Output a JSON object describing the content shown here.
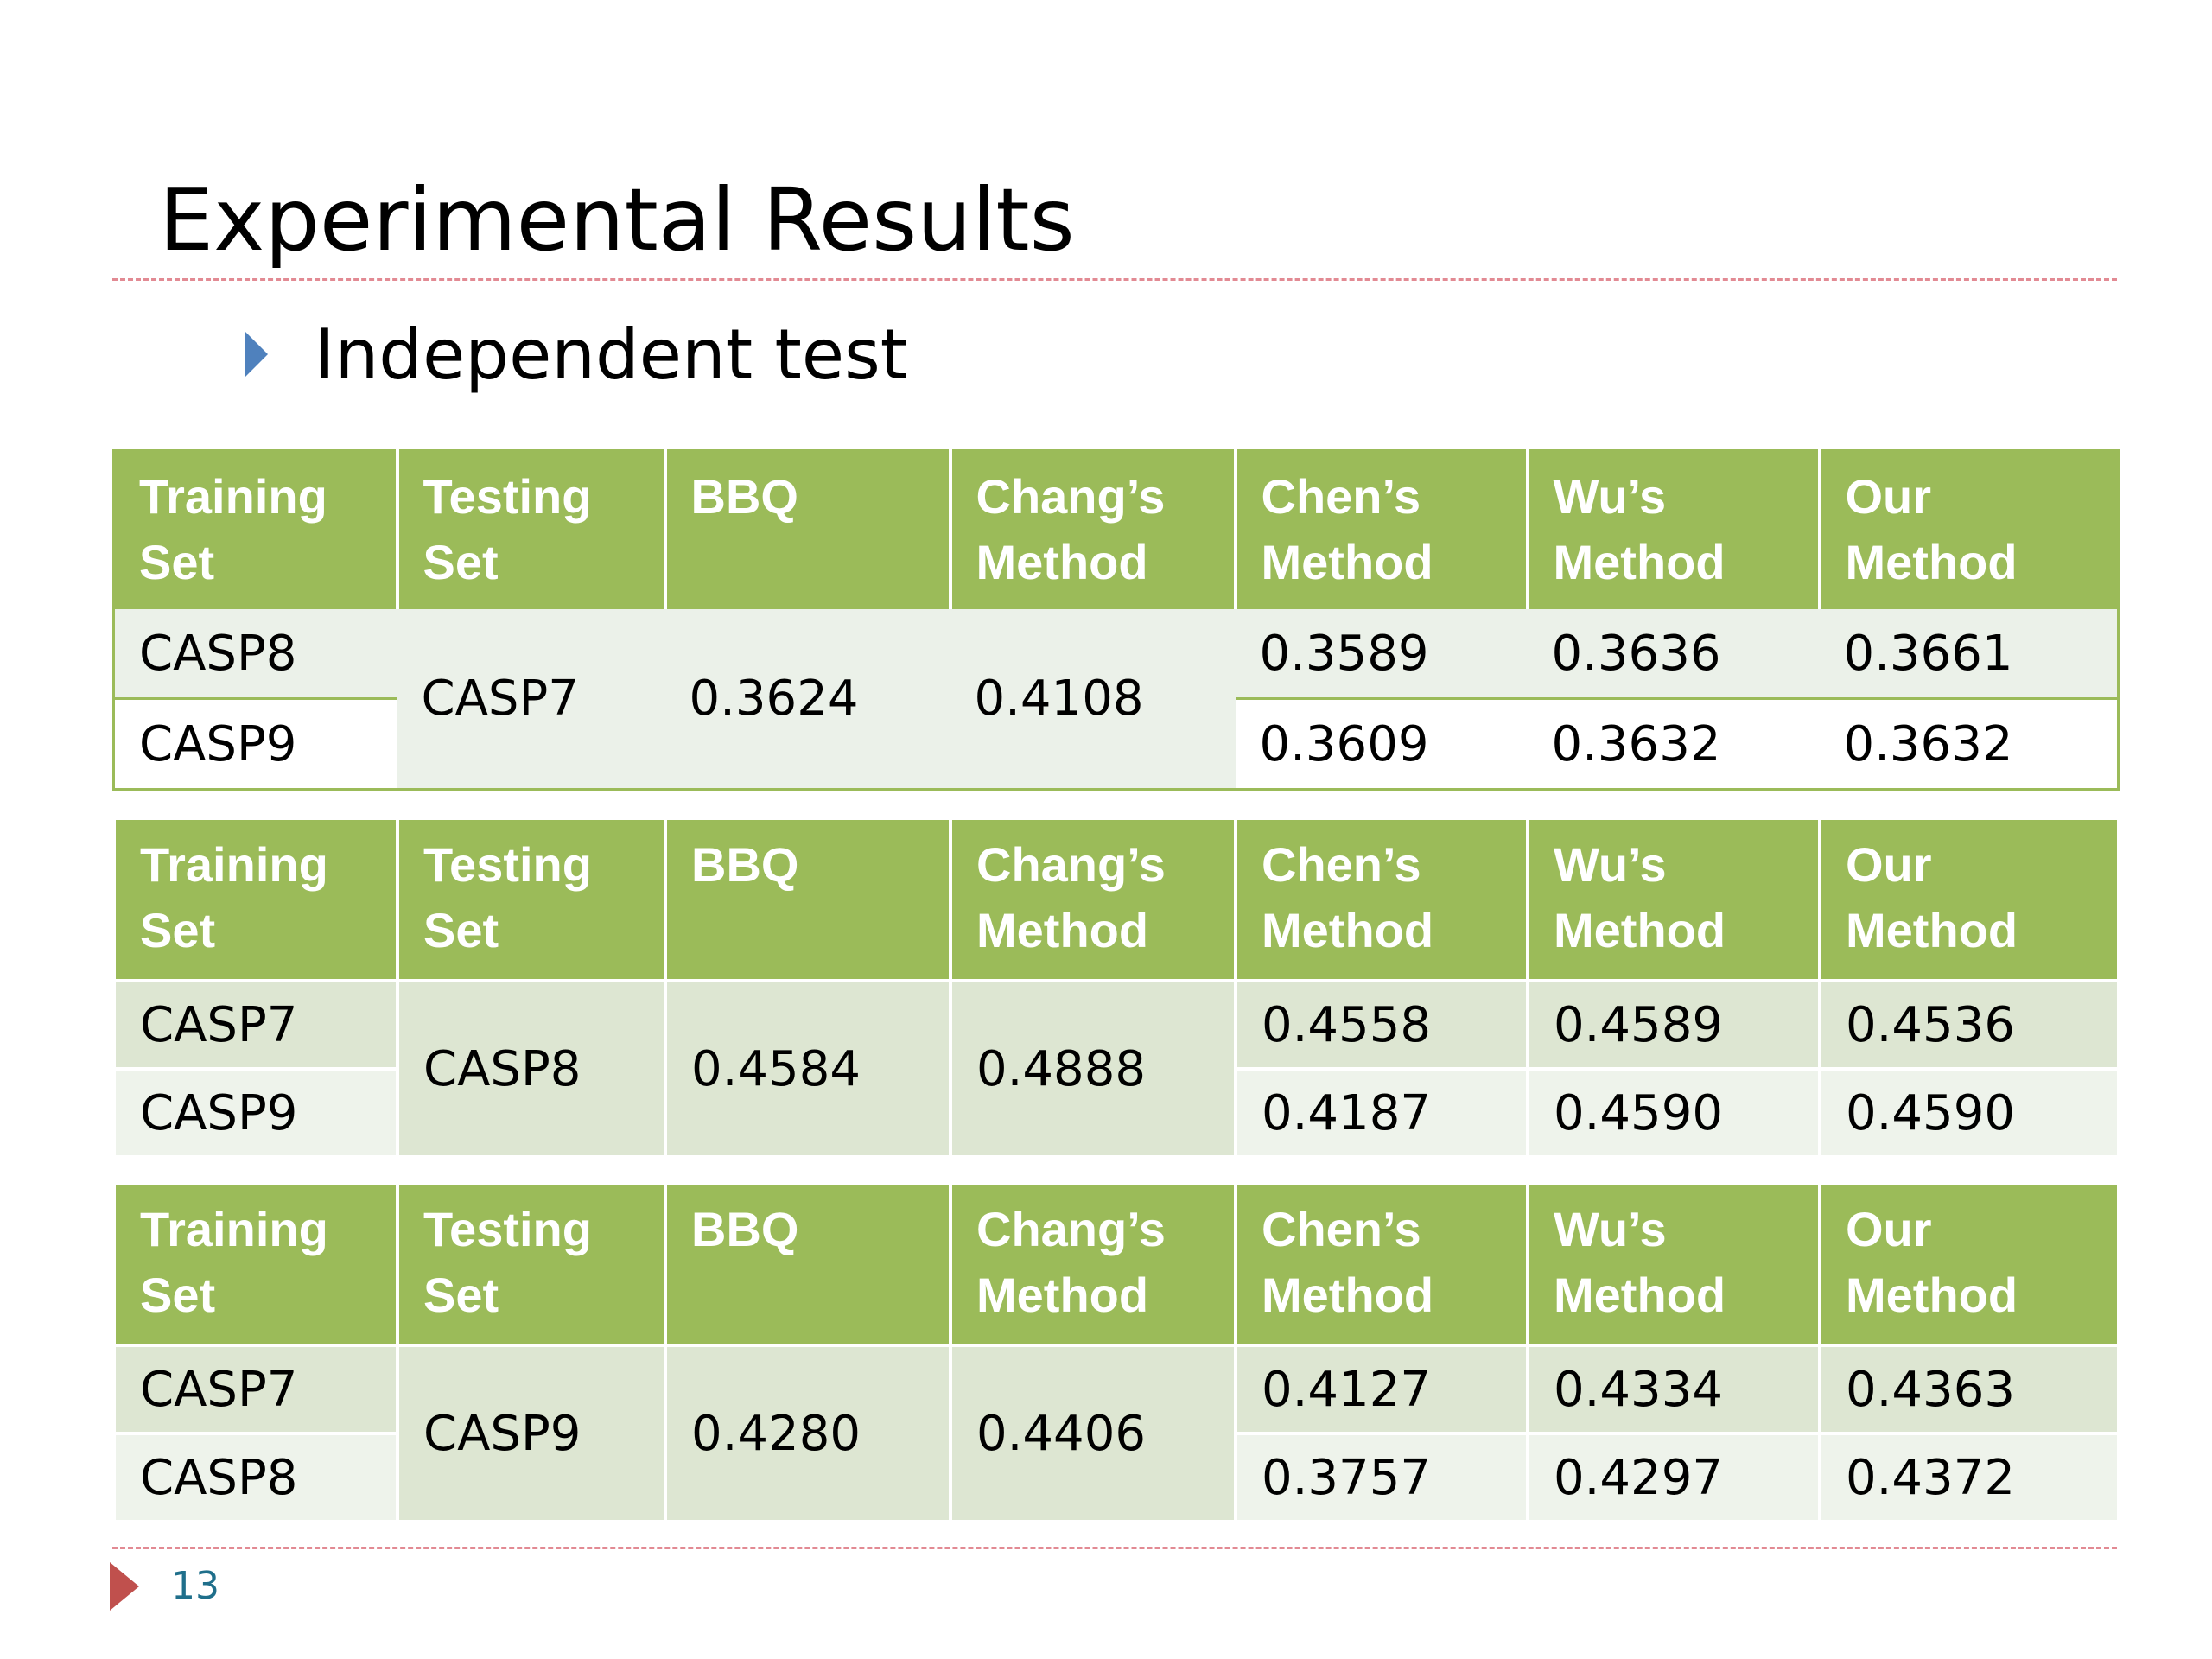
{
  "slide": {
    "title": "Experimental Results",
    "bullet": "Independent test",
    "page_number": "13"
  },
  "headers": {
    "training_set": [
      "Training",
      "Set"
    ],
    "testing_set": [
      "Testing",
      "Set"
    ],
    "bbq": [
      "BBQ"
    ],
    "chang": [
      "Chang’s",
      "Method"
    ],
    "chen": [
      "Chen’s",
      "Method"
    ],
    "wu": [
      "Wu’s",
      "Method"
    ],
    "our": [
      "Our",
      "Method"
    ]
  },
  "tables": [
    {
      "testing_set": "CASP7",
      "bbq": "0.3624",
      "chang": "0.4108",
      "rows": [
        {
          "training_set": "CASP8",
          "chen": "0.3589",
          "wu": "0.3636",
          "our": "0.3661"
        },
        {
          "training_set": "CASP9",
          "chen": "0.3609",
          "wu": "0.3632",
          "our": "0.3632"
        }
      ]
    },
    {
      "testing_set": "CASP8",
      "bbq": "0.4584",
      "chang": "0.4888",
      "rows": [
        {
          "training_set": "CASP7",
          "chen": "0.4558",
          "wu": "0.4589",
          "our": "0.4536"
        },
        {
          "training_set": "CASP9",
          "chen": "0.4187",
          "wu": "0.4590",
          "our": "0.4590"
        }
      ]
    },
    {
      "testing_set": "CASP9",
      "bbq": "0.4280",
      "chang": "0.4406",
      "rows": [
        {
          "training_set": "CASP7",
          "chen": "0.4127",
          "wu": "0.4334",
          "our": "0.4363"
        },
        {
          "training_set": "CASP8",
          "chen": "0.3757",
          "wu": "0.4297",
          "our": "0.4372"
        }
      ]
    }
  ],
  "colors": {
    "header_green": "#9bbb59",
    "bullet_blue": "#4f81bd",
    "footer_red": "#c0504d",
    "dashed_rule": "#e28a93"
  }
}
